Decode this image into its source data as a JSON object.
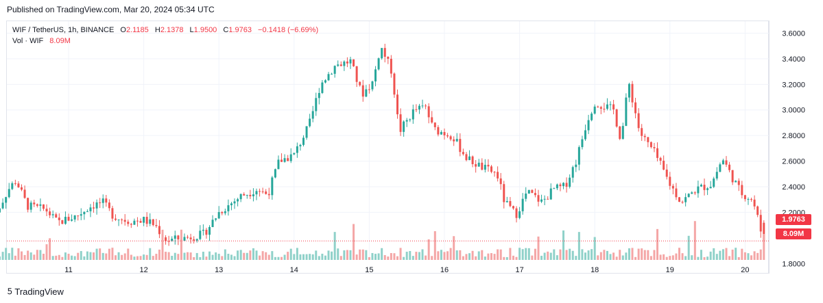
{
  "header": {
    "published": "Published on TradingView.com, Mar 20, 2024 05:34 UTC"
  },
  "legend": {
    "symbol": "WIF / TetherUS, 1h, BINANCE",
    "o_label": "O",
    "o_value": "2.1185",
    "h_label": "H",
    "h_value": "2.1378",
    "l_label": "L",
    "l_value": "1.9500",
    "c_label": "C",
    "c_value": "1.9763",
    "change": "−0.1418 (−6.69%)",
    "vol_label": "Vol · WIF",
    "vol_value": "8.09M"
  },
  "price_tag": "1.9763",
  "volume_tag": "8.09M",
  "footer": {
    "brand": "TradingView",
    "logo_icon": "tradingview-logo-icon"
  },
  "colors": {
    "up": "#26a69a",
    "down": "#ef5350",
    "up_vol": "#8fd1c9",
    "down_vol": "#f4a6a6",
    "grid": "#f0f3fa",
    "tag_red": "#f23645"
  },
  "chart_data": {
    "type": "candlestick",
    "symbol": "WIF / TetherUS",
    "interval": "1h",
    "y_ticks": [
      "3.6000",
      "3.4000",
      "3.2000",
      "3.0000",
      "2.8000",
      "2.6000",
      "2.4000",
      "2.2000",
      "1.8000"
    ],
    "ylim": [
      1.78,
      3.64
    ],
    "x_ticks": [
      "11",
      "12",
      "13",
      "14",
      "15",
      "16",
      "17",
      "18",
      "19",
      "20"
    ],
    "last_close": 1.9763,
    "close_path": [
      {
        "day": 10.0,
        "price": 2.15
      },
      {
        "day": 10.2,
        "price": 2.38
      },
      {
        "day": 10.3,
        "price": 2.45
      },
      {
        "day": 10.45,
        "price": 2.25
      },
      {
        "day": 10.7,
        "price": 2.22
      },
      {
        "day": 10.85,
        "price": 2.12
      },
      {
        "day": 11.1,
        "price": 2.17
      },
      {
        "day": 11.3,
        "price": 2.25
      },
      {
        "day": 11.45,
        "price": 2.28
      },
      {
        "day": 11.6,
        "price": 2.17
      },
      {
        "day": 11.8,
        "price": 2.13
      },
      {
        "day": 12.0,
        "price": 2.14
      },
      {
        "day": 12.15,
        "price": 2.1
      },
      {
        "day": 12.3,
        "price": 1.98
      },
      {
        "day": 12.55,
        "price": 2.0
      },
      {
        "day": 12.8,
        "price": 2.03
      },
      {
        "day": 13.0,
        "price": 2.2
      },
      {
        "day": 13.3,
        "price": 2.33
      },
      {
        "day": 13.5,
        "price": 2.38
      },
      {
        "day": 13.65,
        "price": 2.34
      },
      {
        "day": 13.8,
        "price": 2.6
      },
      {
        "day": 14.0,
        "price": 2.65
      },
      {
        "day": 14.2,
        "price": 2.88
      },
      {
        "day": 14.35,
        "price": 3.2
      },
      {
        "day": 14.55,
        "price": 3.35
      },
      {
        "day": 14.75,
        "price": 3.38
      },
      {
        "day": 14.9,
        "price": 3.12
      },
      {
        "day": 15.05,
        "price": 3.22
      },
      {
        "day": 15.15,
        "price": 3.5
      },
      {
        "day": 15.3,
        "price": 3.3
      },
      {
        "day": 15.4,
        "price": 2.83
      },
      {
        "day": 15.6,
        "price": 3.0
      },
      {
        "day": 15.75,
        "price": 3.02
      },
      {
        "day": 15.85,
        "price": 2.85
      },
      {
        "day": 16.1,
        "price": 2.8
      },
      {
        "day": 16.3,
        "price": 2.62
      },
      {
        "day": 16.5,
        "price": 2.55
      },
      {
        "day": 16.7,
        "price": 2.5
      },
      {
        "day": 16.8,
        "price": 2.28
      },
      {
        "day": 16.95,
        "price": 2.18
      },
      {
        "day": 17.1,
        "price": 2.36
      },
      {
        "day": 17.3,
        "price": 2.28
      },
      {
        "day": 17.45,
        "price": 2.38
      },
      {
        "day": 17.6,
        "price": 2.4
      },
      {
        "day": 17.75,
        "price": 2.6
      },
      {
        "day": 17.9,
        "price": 2.92
      },
      {
        "day": 18.0,
        "price": 3.06
      },
      {
        "day": 18.25,
        "price": 3.0
      },
      {
        "day": 18.35,
        "price": 2.76
      },
      {
        "day": 18.45,
        "price": 3.22
      },
      {
        "day": 18.6,
        "price": 2.82
      },
      {
        "day": 18.8,
        "price": 2.66
      },
      {
        "day": 19.0,
        "price": 2.42
      },
      {
        "day": 19.15,
        "price": 2.28
      },
      {
        "day": 19.35,
        "price": 2.38
      },
      {
        "day": 19.55,
        "price": 2.42
      },
      {
        "day": 19.7,
        "price": 2.62
      },
      {
        "day": 19.85,
        "price": 2.45
      },
      {
        "day": 19.95,
        "price": 2.35
      },
      {
        "day": 20.1,
        "price": 2.3
      },
      {
        "day": 20.18,
        "price": 2.13
      },
      {
        "day": 20.24,
        "price": 1.9763
      }
    ]
  }
}
